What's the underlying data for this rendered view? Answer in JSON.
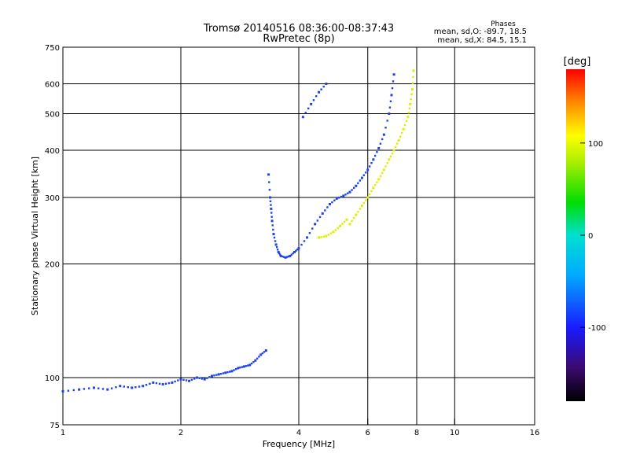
{
  "header": {
    "title_line1": "Tromsø 20140516 08:36:00-08:37:43",
    "title_line2": "RwPretec (8p)",
    "phase_title": "Phases",
    "phase_o": "mean, sd,O: -89.7, 18.5",
    "phase_x": "mean, sd,X:  84.5, 15.1"
  },
  "colorbar": {
    "unit_label": "[deg]",
    "range": [
      -180,
      180
    ],
    "tick_labels": [
      "100",
      "0",
      "-100"
    ],
    "tick_values": [
      100,
      0,
      -100
    ]
  },
  "chart_data": {
    "type": "scatter",
    "xlabel": "Frequency [MHz]",
    "ylabel": "Stationary phase Virtual Height [km]",
    "x_scale": "log",
    "y_scale": "log",
    "xlim": [
      1,
      16
    ],
    "ylim": [
      75,
      750
    ],
    "x_ticks": [
      1,
      2,
      4,
      6,
      8,
      10,
      16
    ],
    "x_tick_labels": [
      "1",
      "2",
      "4",
      "6",
      "8",
      "10",
      "16"
    ],
    "x_grid": [
      2,
      4,
      6,
      8,
      10
    ],
    "y_ticks": [
      75,
      100,
      200,
      300,
      400,
      500,
      600,
      750
    ],
    "y_tick_labels": [
      "75",
      "100",
      "200",
      "300",
      "400",
      "500",
      "600",
      "750"
    ],
    "y_grid": [
      100,
      200,
      300,
      400,
      500,
      600
    ],
    "grid": true,
    "series": [
      {
        "name": "O",
        "color_phase": -95,
        "segments": [
          [
            [
              1.0,
              92
            ],
            [
              1.1,
              93
            ],
            [
              1.2,
              94
            ],
            [
              1.3,
              93
            ],
            [
              1.4,
              95
            ],
            [
              1.5,
              94
            ],
            [
              1.6,
              95
            ],
            [
              1.7,
              97
            ],
            [
              1.8,
              96
            ],
            [
              1.9,
              97
            ],
            [
              2.0,
              99
            ],
            [
              2.1,
              98
            ],
            [
              2.2,
              100
            ],
            [
              2.3,
              99
            ],
            [
              2.4,
              101
            ],
            [
              2.5,
              102
            ],
            [
              2.6,
              103
            ],
            [
              2.7,
              104
            ],
            [
              2.8,
              106
            ],
            [
              2.9,
              107
            ],
            [
              3.0,
              108
            ],
            [
              3.1,
              111
            ],
            [
              3.2,
              115
            ],
            [
              3.3,
              118
            ]
          ],
          [
            [
              3.35,
              345
            ],
            [
              3.38,
              300
            ],
            [
              3.4,
              280
            ],
            [
              3.42,
              260
            ],
            [
              3.45,
              240
            ],
            [
              3.5,
              225
            ],
            [
              3.55,
              215
            ],
            [
              3.6,
              210
            ],
            [
              3.7,
              208
            ],
            [
              3.8,
              210
            ],
            [
              3.9,
              215
            ],
            [
              4.0,
              220
            ],
            [
              4.2,
              235
            ],
            [
              4.4,
              255
            ],
            [
              4.6,
              272
            ],
            [
              4.8,
              288
            ],
            [
              5.0,
              298
            ],
            [
              5.2,
              303
            ],
            [
              5.4,
              310
            ],
            [
              5.6,
              322
            ],
            [
              5.8,
              338
            ],
            [
              6.0,
              355
            ],
            [
              6.2,
              378
            ],
            [
              6.4,
              405
            ],
            [
              6.6,
              440
            ],
            [
              6.8,
              500
            ],
            [
              6.9,
              560
            ],
            [
              7.0,
              635
            ]
          ],
          [
            [
              4.1,
              490
            ],
            [
              4.3,
              530
            ],
            [
              4.5,
              570
            ],
            [
              4.7,
              600
            ]
          ]
        ]
      },
      {
        "name": "X",
        "color_phase": 85,
        "segments": [
          [
            [
              4.5,
              235
            ],
            [
              4.7,
              237
            ],
            [
              4.9,
              243
            ],
            [
              5.1,
              252
            ],
            [
              5.3,
              262
            ]
          ],
          [
            [
              5.4,
              255
            ],
            [
              5.6,
              270
            ],
            [
              5.8,
              285
            ],
            [
              6.0,
              300
            ],
            [
              6.2,
              318
            ],
            [
              6.4,
              335
            ],
            [
              6.6,
              355
            ],
            [
              6.8,
              378
            ],
            [
              7.0,
              400
            ],
            [
              7.2,
              425
            ],
            [
              7.4,
              455
            ],
            [
              7.6,
              490
            ],
            [
              7.7,
              530
            ],
            [
              7.8,
              580
            ],
            [
              7.85,
              650
            ]
          ]
        ]
      }
    ]
  }
}
